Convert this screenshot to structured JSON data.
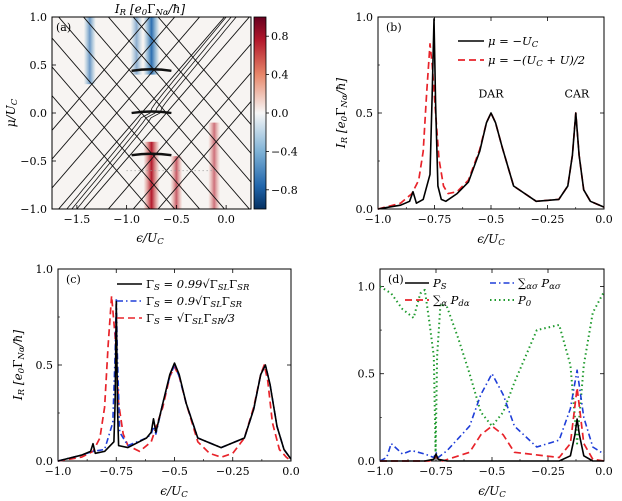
{
  "chart_data": [
    {
      "type": "heatmap",
      "panel": "(a)",
      "title": "I_R [e₀Γ_Nα/ħ]",
      "xlabel": "ε/U_C",
      "ylabel": "μ/U_C",
      "xlim": [
        -1.75,
        0.25
      ],
      "ylim": [
        -1.0,
        1.0
      ],
      "xticks": [
        "−1.5",
        "−1.0",
        "−0.5",
        "0.0"
      ],
      "yticks": [
        "−1.0",
        "−0.5",
        "0.0",
        "0.5",
        "1.0"
      ],
      "colorbar": {
        "ticks": [
          "0.8",
          "0.4",
          "0.0",
          "−0.4",
          "−0.8"
        ],
        "range": [
          -1.0,
          1.0
        ]
      },
      "hot_spots": [
        {
          "x": -1.37,
          "y_from": 0.3,
          "y_to": 1.0,
          "value": -0.55
        },
        {
          "x": -0.9,
          "y_from": 0.4,
          "y_to": 1.0,
          "value": -0.4
        },
        {
          "x": -0.75,
          "y_from": 0.4,
          "y_to": 1.0,
          "value": -0.85
        },
        {
          "x": -0.75,
          "y_from": -1.0,
          "y_to": -0.3,
          "value": 0.9
        },
        {
          "x": -0.5,
          "y_from": -1.0,
          "y_to": -0.45,
          "value": 0.6
        },
        {
          "x": -0.12,
          "y_from": -1.0,
          "y_to": -0.1,
          "value": 0.5
        }
      ]
    },
    {
      "type": "line",
      "panel": "(b)",
      "xlabel": "ε/U_C",
      "ylabel": "I_R [e₀Γ_Nα/ħ]",
      "xlim": [
        -1.0,
        0.0
      ],
      "ylim": [
        0.0,
        1.0
      ],
      "xticks": [
        "−1.0",
        "−0.75",
        "−0.5",
        "−0.25",
        "0.0"
      ],
      "yticks": [
        "0.0",
        "0.5",
        "1.0"
      ],
      "annotations": [
        "DAR",
        "CAR"
      ],
      "series": [
        {
          "name": "μ = −U_C",
          "color": "#000000",
          "x": [
            -1.0,
            -0.9,
            -0.86,
            -0.845,
            -0.83,
            -0.8,
            -0.77,
            -0.76,
            -0.752,
            -0.745,
            -0.735,
            -0.72,
            -0.7,
            -0.65,
            -0.6,
            -0.55,
            -0.52,
            -0.5,
            -0.48,
            -0.45,
            -0.4,
            -0.3,
            -0.2,
            -0.16,
            -0.14,
            -0.125,
            -0.11,
            -0.09,
            -0.06,
            0.0
          ],
          "values": [
            0.0,
            0.02,
            0.04,
            0.09,
            0.03,
            0.05,
            0.18,
            0.6,
            0.99,
            0.55,
            0.12,
            0.05,
            0.04,
            0.08,
            0.14,
            0.3,
            0.45,
            0.5,
            0.45,
            0.32,
            0.12,
            0.04,
            0.05,
            0.12,
            0.28,
            0.5,
            0.28,
            0.1,
            0.04,
            0.01
          ]
        },
        {
          "name": "μ = −(U_C + U)/2",
          "color": "#e8232a",
          "x": [
            -1.0,
            -0.9,
            -0.85,
            -0.82,
            -0.8,
            -0.785,
            -0.77,
            -0.76,
            -0.745,
            -0.73,
            -0.71,
            -0.69,
            -0.65,
            -0.6,
            -0.55,
            -0.52,
            -0.5,
            -0.48,
            -0.45,
            -0.4,
            -0.3,
            -0.2,
            -0.16,
            -0.14,
            -0.125,
            -0.11,
            -0.09,
            -0.06,
            0.0
          ],
          "values": [
            0.0,
            0.03,
            0.08,
            0.15,
            0.3,
            0.6,
            0.86,
            0.75,
            0.5,
            0.26,
            0.12,
            0.08,
            0.09,
            0.15,
            0.31,
            0.45,
            0.5,
            0.45,
            0.32,
            0.12,
            0.04,
            0.05,
            0.12,
            0.28,
            0.5,
            0.28,
            0.1,
            0.04,
            0.01
          ]
        }
      ]
    },
    {
      "type": "line",
      "panel": "(c)",
      "xlabel": "ε/U_C",
      "ylabel": "I_R [e₀Γ_Nα/ħ]",
      "xlim": [
        -1.0,
        0.0
      ],
      "ylim": [
        0.0,
        1.0
      ],
      "xticks": [
        "−1.0",
        "−0.75",
        "−0.5",
        "−0.25",
        "0.0"
      ],
      "yticks": [
        "0.0",
        "0.5",
        "1.0"
      ],
      "series": [
        {
          "name": "Γ_S = 0.99√(Γ_SL Γ_SR)",
          "color": "#000000",
          "x": [
            -1.0,
            -0.9,
            -0.86,
            -0.85,
            -0.84,
            -0.8,
            -0.76,
            -0.755,
            -0.75,
            -0.745,
            -0.74,
            -0.7,
            -0.62,
            -0.6,
            -0.59,
            -0.58,
            -0.55,
            -0.52,
            -0.5,
            -0.48,
            -0.45,
            -0.4,
            -0.3,
            -0.2,
            -0.16,
            -0.13,
            -0.11,
            -0.09,
            -0.06,
            -0.03,
            0.0
          ],
          "values": [
            0.0,
            0.03,
            0.05,
            0.09,
            0.04,
            0.05,
            0.1,
            0.3,
            0.83,
            0.3,
            0.08,
            0.07,
            0.12,
            0.15,
            0.22,
            0.15,
            0.3,
            0.45,
            0.51,
            0.45,
            0.3,
            0.12,
            0.07,
            0.12,
            0.27,
            0.45,
            0.5,
            0.4,
            0.18,
            0.06,
            0.01
          ]
        },
        {
          "name": "Γ_S = 0.9√(Γ_SL Γ_SR)",
          "color": "#1f3ed8",
          "x": [
            -1.0,
            -0.9,
            -0.85,
            -0.8,
            -0.765,
            -0.755,
            -0.75,
            -0.745,
            -0.735,
            -0.7,
            -0.62,
            -0.6,
            -0.59,
            -0.58,
            -0.55,
            -0.52,
            -0.5,
            -0.48,
            -0.45,
            -0.4,
            -0.3,
            -0.2,
            -0.16,
            -0.13,
            -0.11,
            -0.09,
            -0.06,
            -0.03,
            0.0
          ],
          "values": [
            0.0,
            0.03,
            0.05,
            0.06,
            0.2,
            0.55,
            0.85,
            0.55,
            0.15,
            0.08,
            0.12,
            0.14,
            0.18,
            0.14,
            0.3,
            0.44,
            0.5,
            0.44,
            0.3,
            0.12,
            0.07,
            0.12,
            0.27,
            0.45,
            0.5,
            0.4,
            0.18,
            0.06,
            0.01
          ]
        },
        {
          "name": "Γ_S = √(Γ_SL Γ_SR)/3",
          "color": "#e8232a",
          "x": [
            -1.0,
            -0.9,
            -0.85,
            -0.82,
            -0.8,
            -0.785,
            -0.77,
            -0.755,
            -0.74,
            -0.72,
            -0.7,
            -0.65,
            -0.6,
            -0.55,
            -0.52,
            -0.5,
            -0.48,
            -0.45,
            -0.4,
            -0.35,
            -0.3,
            -0.25,
            -0.2,
            -0.16,
            -0.13,
            -0.115,
            -0.1,
            -0.08,
            -0.05,
            -0.02,
            0.0
          ],
          "values": [
            0.0,
            0.02,
            0.05,
            0.12,
            0.28,
            0.6,
            0.86,
            0.65,
            0.3,
            0.14,
            0.08,
            0.05,
            0.1,
            0.28,
            0.44,
            0.49,
            0.44,
            0.3,
            0.1,
            0.04,
            0.02,
            0.04,
            0.12,
            0.28,
            0.45,
            0.5,
            0.42,
            0.2,
            0.06,
            0.02,
            0.0
          ]
        }
      ]
    },
    {
      "type": "line",
      "panel": "(d)",
      "xlabel": "ε/U_C",
      "ylabel": "",
      "xlim": [
        -1.0,
        0.0
      ],
      "ylim": [
        0.0,
        1.1
      ],
      "xticks": [
        "−1.0",
        "−0.75",
        "−0.5",
        "−0.25",
        "0.0"
      ],
      "yticks": [
        "0.0",
        "0.5",
        "1.0"
      ],
      "series": [
        {
          "name": "P_S",
          "color": "#000000",
          "x": [
            -1.0,
            -0.8,
            -0.76,
            -0.75,
            -0.74,
            -0.7,
            -0.5,
            -0.2,
            -0.15,
            -0.13,
            -0.12,
            -0.11,
            -0.09,
            -0.05,
            0.0
          ],
          "values": [
            0.0,
            0.0,
            0.01,
            0.04,
            0.01,
            0.0,
            0.0,
            0.0,
            0.03,
            0.15,
            0.24,
            0.15,
            0.03,
            0.0,
            0.0
          ]
        },
        {
          "name": "∑_α P_dα",
          "color": "#e8232a",
          "x": [
            -1.0,
            -0.78,
            -0.76,
            -0.75,
            -0.74,
            -0.72,
            -0.6,
            -0.55,
            -0.5,
            -0.45,
            -0.4,
            -0.2,
            -0.15,
            -0.12,
            -0.09,
            -0.05,
            0.0
          ],
          "values": [
            0.0,
            0.0,
            0.01,
            0.03,
            0.01,
            0.0,
            0.05,
            0.15,
            0.2,
            0.15,
            0.05,
            0.02,
            0.1,
            0.42,
            0.1,
            0.01,
            0.0
          ]
        },
        {
          "name": "∑_ασ P_ασ",
          "color": "#1f3ed8",
          "x": [
            -1.0,
            -0.97,
            -0.95,
            -0.9,
            -0.86,
            -0.8,
            -0.76,
            -0.75,
            -0.74,
            -0.7,
            -0.6,
            -0.55,
            -0.5,
            -0.45,
            -0.4,
            -0.3,
            -0.2,
            -0.15,
            -0.12,
            -0.09,
            -0.05,
            0.0
          ],
          "values": [
            0.0,
            0.02,
            0.1,
            0.04,
            0.06,
            0.04,
            0.02,
            0.05,
            0.02,
            0.06,
            0.2,
            0.38,
            0.5,
            0.38,
            0.2,
            0.08,
            0.12,
            0.3,
            0.52,
            0.25,
            0.08,
            0.04
          ]
        },
        {
          "name": "P_0",
          "color": "#1f9a2e",
          "x": [
            -1.0,
            -0.95,
            -0.9,
            -0.85,
            -0.82,
            -0.8,
            -0.78,
            -0.76,
            -0.752,
            -0.745,
            -0.73,
            -0.7,
            -0.65,
            -0.6,
            -0.55,
            -0.5,
            -0.45,
            -0.4,
            -0.3,
            -0.2,
            -0.15,
            -0.12,
            -0.09,
            -0.05,
            0.0
          ],
          "values": [
            1.0,
            0.96,
            0.87,
            0.82,
            0.96,
            0.98,
            0.8,
            0.6,
            0.05,
            0.6,
            0.9,
            0.88,
            0.7,
            0.5,
            0.28,
            0.2,
            0.28,
            0.45,
            0.75,
            0.78,
            0.55,
            0.1,
            0.55,
            0.85,
            0.97
          ]
        }
      ]
    }
  ]
}
